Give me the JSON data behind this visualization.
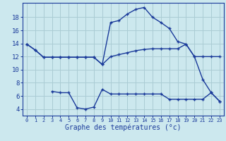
{
  "title": "Graphe des températures (°c)",
  "background_color": "#cce8ee",
  "grid_color": "#aaccd4",
  "line_color": "#1a3a9a",
  "x_labels": [
    "0",
    "1",
    "2",
    "3",
    "4",
    "5",
    "6",
    "7",
    "8",
    "9",
    "10",
    "11",
    "12",
    "13",
    "14",
    "15",
    "16",
    "17",
    "18",
    "19",
    "20",
    "21",
    "22",
    "23"
  ],
  "hours": [
    0,
    1,
    2,
    3,
    4,
    5,
    6,
    7,
    8,
    9,
    10,
    11,
    12,
    13,
    14,
    15,
    16,
    17,
    18,
    19,
    20,
    21,
    22,
    23
  ],
  "line1": [
    13.9,
    13.0,
    11.9,
    11.9,
    11.9,
    11.9,
    11.9,
    11.9,
    11.9,
    10.8,
    17.2,
    17.5,
    18.5,
    19.2,
    19.5,
    18.0,
    17.2,
    16.3,
    14.3,
    13.9,
    12.0,
    8.5,
    6.5,
    5.2
  ],
  "line2": [
    13.9,
    13.0,
    11.9,
    11.9,
    11.9,
    11.9,
    11.9,
    11.9,
    11.9,
    10.8,
    12.0,
    12.3,
    12.6,
    12.9,
    13.1,
    13.2,
    13.2,
    13.2,
    13.2,
    13.9,
    12.0,
    12.0,
    12.0,
    12.0
  ],
  "line3": [
    null,
    null,
    null,
    6.7,
    6.5,
    6.5,
    4.2,
    4.0,
    4.3,
    7.0,
    6.3,
    6.3,
    6.3,
    6.3,
    6.3,
    6.3,
    6.3,
    5.5,
    5.5,
    5.5,
    5.5,
    5.5,
    6.5,
    5.2
  ],
  "ylim": [
    3.0,
    20.2
  ],
  "yticks": [
    4,
    6,
    8,
    10,
    12,
    14,
    16,
    18
  ],
  "xlim": [
    -0.5,
    23.5
  ]
}
